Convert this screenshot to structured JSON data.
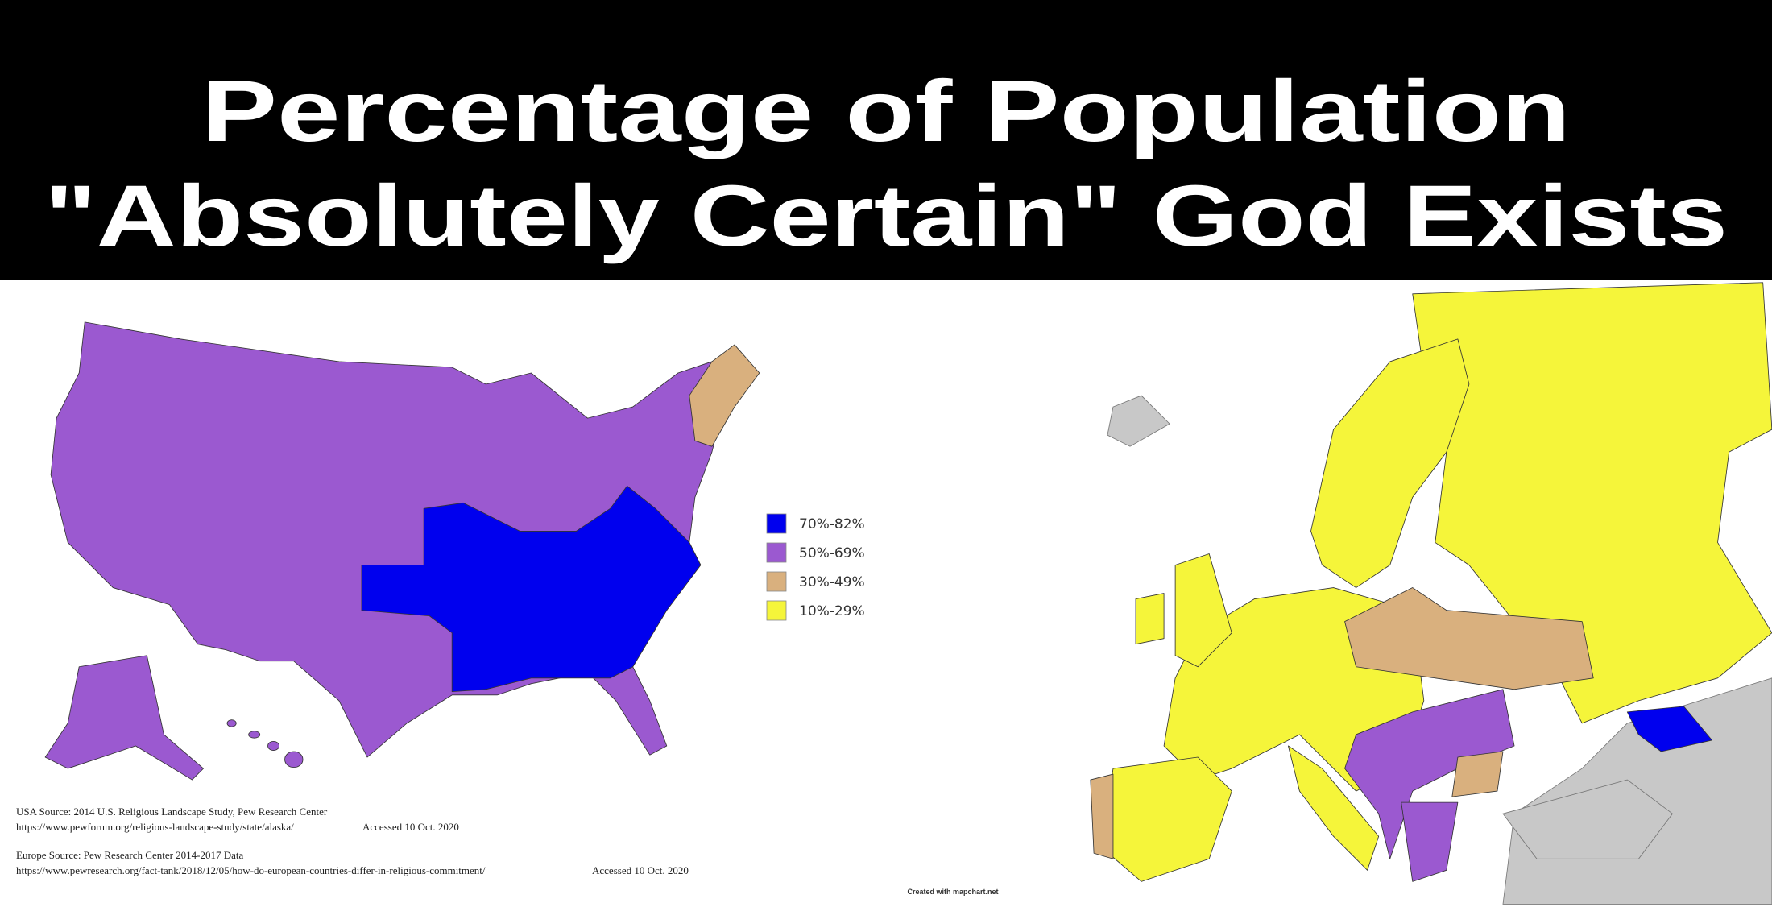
{
  "title": {
    "line1": "Percentage of Population",
    "line2": "\"Absolutely Certain\" God Exists"
  },
  "legend": {
    "items": [
      {
        "label": "70%-82%",
        "color": "#0000ee"
      },
      {
        "label": "50%-69%",
        "color": "#9b59d0"
      },
      {
        "label": "30%-49%",
        "color": "#d9b07e"
      },
      {
        "label": "10%-29%",
        "color": "#f5f53a"
      }
    ]
  },
  "sources": {
    "usa": "USA Source: 2014 U.S. Religious Landscape Study, Pew Research Center",
    "usa_url": "https://www.pewforum.org/religious-landscape-study/state/alaska/",
    "usa_accessed": "Accessed 10 Oct. 2020",
    "europe": "Europe Source: Pew Research Center 2014-2017 Data",
    "europe_url": "https://www.pewresearch.org/fact-tank/2018/12/05/how-do-european-countries-differ-in-religious-commitment/",
    "europe_accessed": "Accessed 10 Oct. 2020"
  },
  "credit": "Created with mapchart.net"
}
